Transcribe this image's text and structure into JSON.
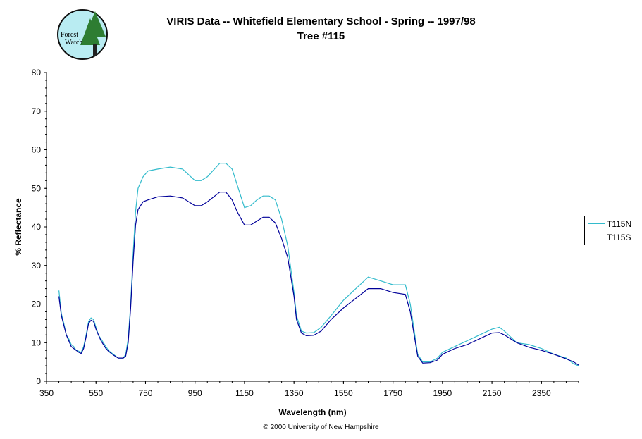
{
  "logo": {
    "line1": "Forest",
    "line2": "Watch",
    "bg_color": "#b9ecf2",
    "border_color": "#111111",
    "tree_color": "#2e7d32"
  },
  "header": {
    "title_line1": "VIRIS Data -- Whitefield Elementary School - Spring -- 1997/98",
    "title_line2": "Tree #115"
  },
  "footer": {
    "copyright": "© 2000 University of New Hampshire"
  },
  "chart_data": {
    "type": "line",
    "xlabel": "Wavelength (nm)",
    "ylabel": "% Reflectance",
    "xlim": [
      350,
      2500
    ],
    "ylim": [
      0,
      80
    ],
    "x_ticks": [
      350,
      550,
      750,
      950,
      1150,
      1350,
      1550,
      1750,
      1950,
      2150,
      2350
    ],
    "y_ticks": [
      0,
      10,
      20,
      30,
      40,
      50,
      60,
      70,
      80
    ],
    "grid": false,
    "legend_position": "right",
    "series": [
      {
        "name": "T115N",
        "color": "#33bbcc",
        "x": [
          400,
          410,
          420,
          430,
          440,
          450,
          460,
          470,
          480,
          490,
          500,
          510,
          520,
          530,
          540,
          550,
          560,
          570,
          580,
          590,
          600,
          620,
          640,
          660,
          670,
          680,
          690,
          700,
          710,
          720,
          740,
          760,
          800,
          850,
          900,
          950,
          975,
          1000,
          1050,
          1075,
          1100,
          1120,
          1150,
          1175,
          1200,
          1225,
          1250,
          1275,
          1300,
          1325,
          1350,
          1360,
          1380,
          1400,
          1430,
          1460,
          1500,
          1550,
          1600,
          1650,
          1700,
          1750,
          1800,
          1820,
          1850,
          1870,
          1900,
          1930,
          1950,
          2000,
          2050,
          2100,
          2150,
          2180,
          2200,
          2250,
          2300,
          2350,
          2400,
          2450,
          2480,
          2500
        ],
        "values": [
          23.5,
          17.5,
          15,
          12,
          11,
          9.5,
          9,
          8,
          7.8,
          7.5,
          9,
          12,
          15.5,
          16.4,
          16,
          14,
          12,
          11,
          10,
          9,
          8,
          7,
          6,
          6,
          7,
          11,
          20,
          33,
          44,
          50,
          53,
          54.5,
          55,
          55.5,
          55,
          52,
          52,
          53,
          56.5,
          56.5,
          55,
          51,
          45,
          45.5,
          47,
          48,
          48,
          47,
          42,
          35,
          23,
          17,
          13,
          12.5,
          12.6,
          14,
          17,
          21,
          24,
          27,
          26,
          25,
          25,
          20,
          7,
          5,
          5,
          6,
          7.5,
          9,
          10.5,
          12,
          13.5,
          14,
          13,
          10,
          9.5,
          8.5,
          7,
          6,
          4.5,
          4.0
        ]
      },
      {
        "name": "T115S",
        "color": "#000099",
        "x": [
          400,
          410,
          420,
          430,
          440,
          450,
          460,
          470,
          480,
          490,
          500,
          510,
          520,
          530,
          540,
          550,
          560,
          570,
          580,
          590,
          600,
          620,
          640,
          660,
          670,
          680,
          690,
          700,
          710,
          720,
          740,
          760,
          800,
          850,
          900,
          950,
          975,
          1000,
          1050,
          1075,
          1100,
          1120,
          1150,
          1175,
          1200,
          1225,
          1250,
          1275,
          1300,
          1325,
          1350,
          1360,
          1380,
          1400,
          1430,
          1460,
          1500,
          1550,
          1600,
          1650,
          1700,
          1750,
          1800,
          1820,
          1850,
          1870,
          1900,
          1930,
          1950,
          2000,
          2050,
          2100,
          2150,
          2180,
          2200,
          2250,
          2300,
          2350,
          2400,
          2450,
          2480,
          2500
        ],
        "values": [
          22,
          17,
          14.5,
          12,
          10.5,
          9,
          8.5,
          8,
          7.5,
          7.2,
          8.5,
          11.5,
          15,
          15.8,
          15.5,
          13.5,
          12,
          10.5,
          9.5,
          8.5,
          7.8,
          6.8,
          6,
          6,
          6.5,
          10,
          19,
          31,
          40.5,
          44.5,
          46.5,
          47,
          47.8,
          48,
          47.5,
          45.5,
          45.5,
          46.5,
          49,
          49,
          47,
          44,
          40.5,
          40.5,
          41.5,
          42.5,
          42.5,
          41,
          37,
          32,
          22,
          16,
          12.5,
          11.8,
          11.9,
          13,
          16,
          19,
          21.5,
          24,
          24,
          23,
          22.5,
          18,
          6.5,
          4.7,
          4.8,
          5.5,
          7,
          8.5,
          9.5,
          11,
          12.5,
          12.6,
          12,
          10,
          8.8,
          8,
          7,
          5.8,
          5.0,
          4.2
        ]
      }
    ]
  }
}
